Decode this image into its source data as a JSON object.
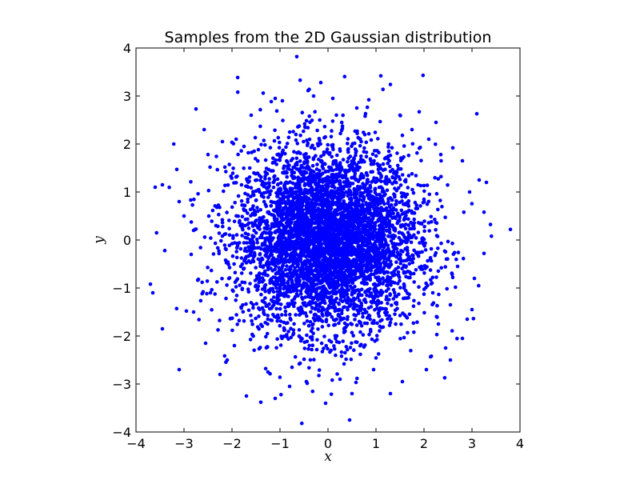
{
  "chart_data": {
    "type": "scatter",
    "title": "Samples from the 2D Gaussian distribution",
    "xlabel": "x",
    "ylabel": "y",
    "xlim": [
      -4,
      4
    ],
    "ylim": [
      -4,
      4
    ],
    "xticks": [
      "−4",
      "−3",
      "−2",
      "−1",
      "0",
      "1",
      "2",
      "3",
      "4"
    ],
    "yticks": [
      "4",
      "3",
      "2",
      "1",
      "0",
      "−1",
      "−2",
      "−3",
      "−4"
    ],
    "xtick_values": [
      -4,
      -3,
      -2,
      -1,
      0,
      1,
      2,
      3,
      4
    ],
    "ytick_values": [
      4,
      3,
      2,
      1,
      0,
      -1,
      -2,
      -3,
      -4
    ],
    "grid": false,
    "marker_color": "#0000ff",
    "distribution": {
      "mean": [
        0,
        0
      ],
      "std": [
        1,
        1
      ]
    },
    "series": [
      {
        "points": [
          [
            -0.65,
            3.82
          ],
          [
            -0.58,
            3.33
          ],
          [
            -0.15,
            3.28
          ],
          [
            1.1,
            3.42
          ],
          [
            1.3,
            3.24
          ],
          [
            1.98,
            3.43
          ],
          [
            -2.75,
            2.73
          ],
          [
            -1.88,
            3.08
          ],
          [
            -2.58,
            2.3
          ],
          [
            3.1,
            2.63
          ],
          [
            2.25,
            2.45
          ],
          [
            1.9,
            2.67
          ],
          [
            0.85,
            2.92
          ],
          [
            -1.35,
            3.06
          ],
          [
            -1.1,
            2.95
          ],
          [
            -3.15,
            1.47
          ],
          [
            -3.45,
            1.15
          ],
          [
            -3.6,
            1.1
          ],
          [
            -3.1,
            0.8
          ],
          [
            -3.7,
            -0.92
          ],
          [
            -3.65,
            -1.1
          ],
          [
            -3.45,
            -1.85
          ],
          [
            -3.1,
            -2.7
          ],
          [
            -3.4,
            -0.22
          ],
          [
            -2.8,
            0.2
          ],
          [
            -3.0,
            0.5
          ],
          [
            -2.85,
            -0.3
          ],
          [
            -2.7,
            -0.82
          ],
          [
            -2.95,
            -1.48
          ],
          [
            -2.8,
            -1.5
          ],
          [
            -2.25,
            -2.8
          ],
          [
            -1.7,
            -3.25
          ],
          [
            -1.4,
            -3.38
          ],
          [
            -1.1,
            -3.3
          ],
          [
            -0.8,
            -3.05
          ],
          [
            -0.05,
            -3.4
          ],
          [
            0.45,
            -3.75
          ],
          [
            0.5,
            -3.2
          ],
          [
            1.3,
            -3.2
          ],
          [
            1.55,
            -2.95
          ],
          [
            2.05,
            -2.7
          ],
          [
            2.55,
            -2.5
          ],
          [
            2.8,
            -2.05
          ],
          [
            2.9,
            -1.65
          ],
          [
            3.0,
            -1.45
          ],
          [
            3.05,
            -0.8
          ],
          [
            3.25,
            -0.28
          ],
          [
            3.8,
            0.22
          ],
          [
            3.25,
            0.58
          ],
          [
            3.3,
            1.2
          ],
          [
            3.15,
            1.25
          ],
          [
            2.95,
            1.0
          ],
          [
            2.8,
            1.65
          ],
          [
            2.6,
            1.92
          ],
          [
            2.35,
            1.78
          ],
          [
            -1.6,
            2.6
          ],
          [
            -2.2,
            2.05
          ],
          [
            -2.5,
            1.78
          ],
          [
            0.1,
            2.95
          ],
          [
            0.6,
            2.75
          ],
          [
            -0.95,
            2.9
          ],
          [
            2.7,
            -0.55
          ],
          [
            2.55,
            -1.35
          ],
          [
            2.3,
            -1.75
          ],
          [
            2.45,
            -2.25
          ],
          [
            -2.55,
            -2.15
          ],
          [
            -2.1,
            -2.5
          ],
          [
            -1.95,
            -2.2
          ],
          [
            1.75,
            2.3
          ],
          [
            1.5,
            2.6
          ],
          [
            -0.3,
            3.0
          ],
          [
            0.25,
            -2.9
          ],
          [
            -0.45,
            -2.95
          ],
          [
            0.95,
            -2.7
          ],
          [
            -1.25,
            -2.75
          ],
          [
            -1.75,
            1.95
          ],
          [
            2.1,
            2.1
          ],
          [
            -2.45,
            -1.1
          ]
        ],
        "random_samples": 5000,
        "random_std": 0.95
      }
    ]
  }
}
